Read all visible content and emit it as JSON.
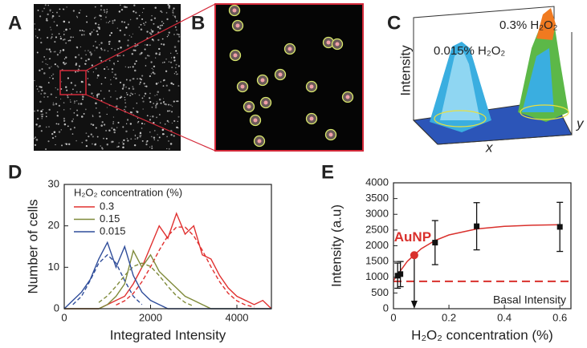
{
  "panels": {
    "labels": [
      "A",
      "B",
      "C",
      "D",
      "E"
    ],
    "c": {
      "label_high": "0.3% H₂O₂",
      "label_low": "0.015% H₂O₂",
      "z_axis": "Intensity",
      "x_axis": "x",
      "y_axis": "y"
    }
  },
  "chart_data": [
    {
      "type": "line",
      "x_label": "Integrated Intensity",
      "y_label": "Number of cells",
      "legend_title": "H₂O₂ concentration (%)",
      "legend": "upper left",
      "x": [
        0,
        200,
        400,
        600,
        800,
        1000,
        1200,
        1400,
        1600,
        1800,
        2000,
        2200,
        2400,
        2600,
        2800,
        3000,
        3200,
        3400,
        3600,
        3800,
        4000,
        4200,
        4400,
        4600,
        4800
      ],
      "series": [
        {
          "name": "0.3",
          "color": "#e0302f",
          "values": [
            0,
            0,
            0,
            0,
            0,
            1,
            2,
            3,
            6,
            10,
            15,
            20,
            17,
            23,
            18,
            20,
            13,
            12,
            8,
            5,
            3,
            2,
            1,
            2,
            0
          ],
          "fit": [
            null,
            null,
            null,
            null,
            null,
            null,
            0.9,
            1.9,
            3.7,
            6.5,
            10.1,
            14.1,
            17.6,
            19.7,
            19.7,
            17.6,
            14.1,
            10.1,
            6.5,
            3.7,
            1.9,
            0.9,
            0.4,
            null,
            null
          ]
        },
        {
          "name": "0.15",
          "color": "#7f8a3a",
          "values": [
            0,
            0,
            0,
            0,
            0,
            1,
            3,
            6,
            14,
            10,
            13,
            9,
            7,
            5,
            3,
            2,
            1,
            0,
            0,
            0,
            0,
            0,
            0,
            0,
            0
          ],
          "fit": [
            null,
            null,
            null,
            null,
            1.5,
            3.1,
            5.4,
            8.0,
            10.2,
            11,
            10.2,
            8.0,
            5.4,
            3.1,
            1.5,
            0.6,
            null,
            null,
            null,
            null,
            null,
            null,
            null,
            null,
            null
          ]
        },
        {
          "name": "0.015",
          "color": "#2f4d9a",
          "values": [
            0,
            2,
            4,
            7,
            12,
            16,
            10,
            15,
            8,
            4,
            2,
            1,
            0,
            0,
            0,
            0,
            0,
            0,
            0,
            0,
            0,
            0,
            0,
            0,
            0
          ],
          "fit": [
            null,
            1.0,
            3.0,
            6.8,
            11.0,
            13,
            11.0,
            6.8,
            3.0,
            1.0,
            null,
            null,
            null,
            null,
            null,
            null,
            null,
            null,
            null,
            null,
            null,
            null,
            null,
            null,
            null
          ]
        }
      ],
      "xlim": [
        0,
        4800
      ],
      "xticks": [
        0,
        2000,
        4000
      ],
      "ylim": [
        0,
        30
      ],
      "yticks": [
        0,
        10,
        20,
        30
      ]
    },
    {
      "type": "scatter",
      "x_label": "H₂O₂ concentration (%)",
      "y_label": "Intensity (a.u)",
      "series": [
        {
          "color": "#111111",
          "x": [
            0.015,
            0.025,
            0.15,
            0.3,
            0.6
          ],
          "values": [
            1050,
            1100,
            2100,
            2620,
            2600
          ],
          "errors": [
            400,
            400,
            700,
            750,
            780
          ]
        }
      ],
      "fit": {
        "color": "#d9302c",
        "x": [
          0,
          0.05,
          0.1,
          0.15,
          0.2,
          0.3,
          0.4,
          0.5,
          0.6
        ],
        "values": [
          900,
          1507,
          1906,
          2169,
          2344,
          2534,
          2617,
          2652,
          2668
        ]
      },
      "hline": {
        "value": 870,
        "label": "Basal Intensity",
        "color": "#d9302c"
      },
      "annotation": {
        "text": "AuNP",
        "x": 0.075,
        "y": 1700,
        "color": "#d9302c"
      },
      "xlim": [
        0,
        0.64
      ],
      "xticks": [
        0,
        0.2,
        0.4,
        0.6
      ],
      "ylim": [
        0,
        4000
      ],
      "yticks": [
        0,
        500,
        1000,
        1500,
        2000,
        2500,
        3000,
        3500,
        4000
      ]
    }
  ]
}
